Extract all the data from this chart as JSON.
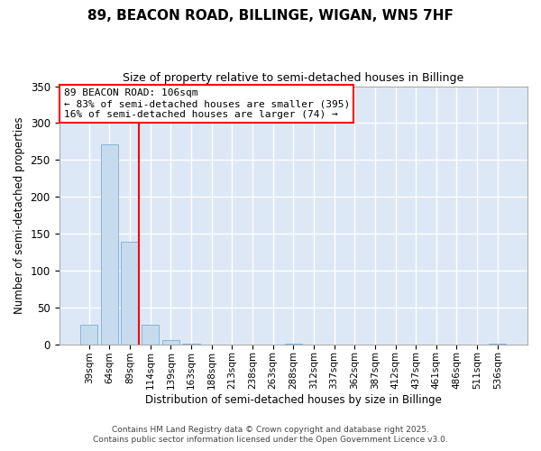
{
  "title": "89, BEACON ROAD, BILLINGE, WIGAN, WN5 7HF",
  "subtitle": "Size of property relative to semi-detached houses in Billinge",
  "xlabel": "Distribution of semi-detached houses by size in Billinge",
  "ylabel": "Number of semi-detached properties",
  "bins": [
    "39sqm",
    "64sqm",
    "89sqm",
    "114sqm",
    "139sqm",
    "163sqm",
    "188sqm",
    "213sqm",
    "238sqm",
    "263sqm",
    "288sqm",
    "312sqm",
    "337sqm",
    "362sqm",
    "387sqm",
    "412sqm",
    "437sqm",
    "461sqm",
    "486sqm",
    "511sqm",
    "536sqm"
  ],
  "values": [
    27,
    271,
    139,
    27,
    6,
    1,
    0,
    0,
    0,
    0,
    1,
    0,
    0,
    0,
    0,
    0,
    0,
    0,
    0,
    0,
    1
  ],
  "bar_color": "#c6dcee",
  "bar_edge_color": "#8ab4d4",
  "vline_color": "red",
  "annotation_title": "89 BEACON ROAD: 106sqm",
  "annotation_line1": "← 83% of semi-detached houses are smaller (395)",
  "annotation_line2": "16% of semi-detached houses are larger (74) →",
  "annotation_box_color": "white",
  "annotation_box_edgecolor": "red",
  "ylim": [
    0,
    350
  ],
  "yticks": [
    0,
    50,
    100,
    150,
    200,
    250,
    300,
    350
  ],
  "footer1": "Contains HM Land Registry data © Crown copyright and database right 2025.",
  "footer2": "Contains public sector information licensed under the Open Government Licence v3.0.",
  "bg_color": "#ffffff",
  "plot_bg_color": "#dce8f5"
}
